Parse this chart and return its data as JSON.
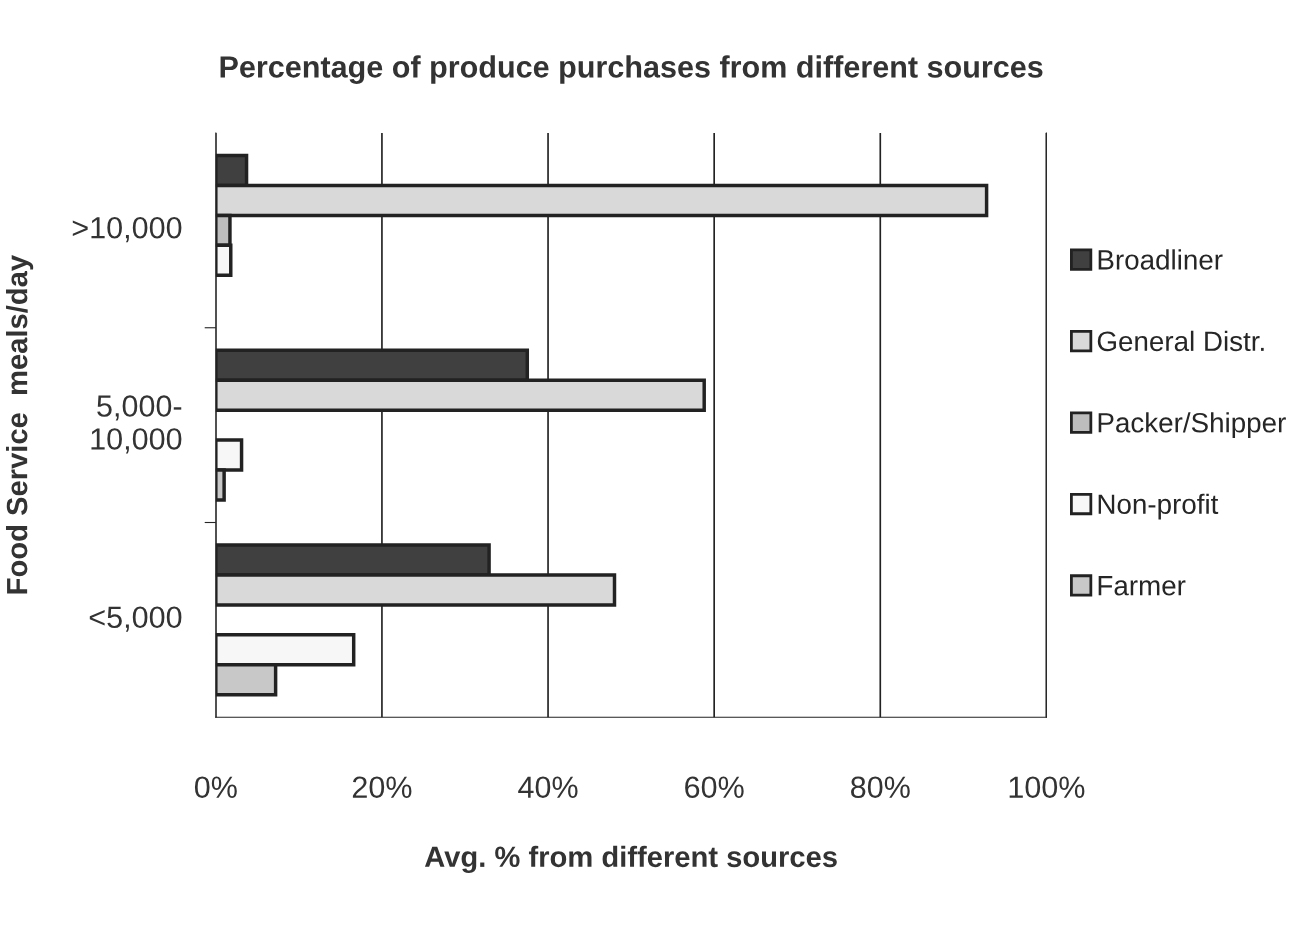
{
  "chart_data": {
    "type": "bar",
    "orientation": "horizontal",
    "title": "Percentage of produce purchases from different sources",
    "xlabel": "Avg. % from different sources",
    "ylabel": "Food Service  meals/day",
    "categories": [
      ">10,000",
      "5,000-\n10,000",
      "<5,000"
    ],
    "series": [
      {
        "name": "Broadliner",
        "color": "#404040",
        "values": [
          3.7,
          37.5,
          32.9
        ]
      },
      {
        "name": "General Distr.",
        "color": "#d9d9d9",
        "values": [
          92.8,
          58.8,
          48.0
        ]
      },
      {
        "name": "Packer/Shipper",
        "color": "#bdbdbd",
        "values": [
          1.7,
          null,
          null
        ]
      },
      {
        "name": "Non-profit",
        "color": "#f7f7f7",
        "values": [
          1.8,
          3.1,
          16.6
        ]
      },
      {
        "name": "Farmer",
        "color": "#c8c8c8",
        "values": [
          null,
          1.0,
          7.2
        ]
      }
    ],
    "xlim": [
      0,
      100
    ],
    "xticks": [
      {
        "value": 0,
        "label": "0%"
      },
      {
        "value": 20,
        "label": "20%"
      },
      {
        "value": 40,
        "label": "40%"
      },
      {
        "value": 60,
        "label": "60%"
      },
      {
        "value": 80,
        "label": "80%"
      },
      {
        "value": 100,
        "label": "100%"
      }
    ],
    "grid": "x",
    "legend": "right"
  }
}
